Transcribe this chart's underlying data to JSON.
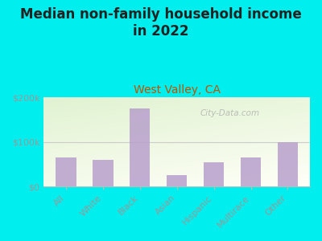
{
  "title": "Median non-family household income\nin 2022",
  "subtitle": "West Valley, CA",
  "categories": [
    "All",
    "White",
    "Black",
    "Asian",
    "Hispanic",
    "Multirace",
    "Other"
  ],
  "values": [
    65000,
    60000,
    175000,
    25000,
    55000,
    65000,
    100000
  ],
  "bar_color": "#b8a0cc",
  "background_outer": "#00EEEE",
  "title_color": "#222222",
  "subtitle_color": "#bb5500",
  "tick_label_color": "#999999",
  "ylim": [
    0,
    200000
  ],
  "yticks": [
    0,
    100000,
    200000
  ],
  "ytick_labels": [
    "$0",
    "$100k",
    "$200k"
  ],
  "watermark": "City-Data.com",
  "title_fontsize": 12,
  "subtitle_fontsize": 10,
  "tick_fontsize": 8
}
